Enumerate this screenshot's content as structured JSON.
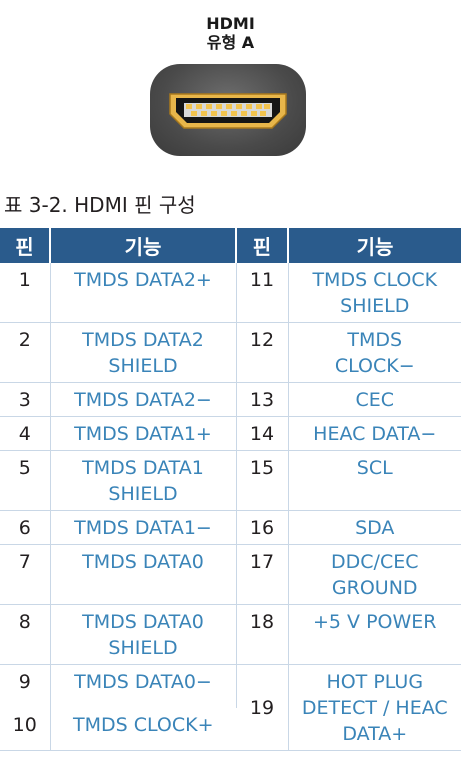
{
  "connector": {
    "title_line1": "HDMI",
    "title_line2": "유형 A",
    "icon": "hdmi-type-a-connector"
  },
  "caption": "표 3-2. HDMI 핀 구성",
  "table": {
    "headers": [
      "핀",
      "기능",
      "핀",
      "기능"
    ],
    "header_color": "#2a5b8c",
    "function_text_color": "#3a84b8",
    "rows": [
      {
        "pin_a": "1",
        "func_a": "TMDS DATA2+",
        "pin_b": "11",
        "func_b": "TMDS CLOCK SHIELD"
      },
      {
        "pin_a": "2",
        "func_a": "TMDS DATA2 SHIELD",
        "pin_b": "12",
        "func_b": "TMDS CLOCK−"
      },
      {
        "pin_a": "3",
        "func_a": "TMDS DATA2−",
        "pin_b": "13",
        "func_b": "CEC"
      },
      {
        "pin_a": "4",
        "func_a": "TMDS DATA1+",
        "pin_b": "14",
        "func_b": "HEAC DATA−"
      },
      {
        "pin_a": "5",
        "func_a": "TMDS DATA1 SHIELD",
        "pin_b": "15",
        "func_b": "SCL"
      },
      {
        "pin_a": "6",
        "func_a": "TMDS DATA1−",
        "pin_b": "16",
        "func_b": "SDA"
      },
      {
        "pin_a": "7",
        "func_a": "TMDS DATA0",
        "pin_b": "17",
        "func_b": "DDC/CEC GROUND"
      },
      {
        "pin_a": "8",
        "func_a": "TMDS DATA0 SHIELD",
        "pin_b": "18",
        "func_b": "+5 V POWER"
      },
      {
        "pin_a": "9",
        "func_a": "TMDS DATA0−",
        "pin_b": "19",
        "func_b": "HOT PLUG DETECT / HEAC DATA+"
      },
      {
        "pin_a": "10",
        "func_a": "TMDS CLOCK+"
      }
    ]
  }
}
